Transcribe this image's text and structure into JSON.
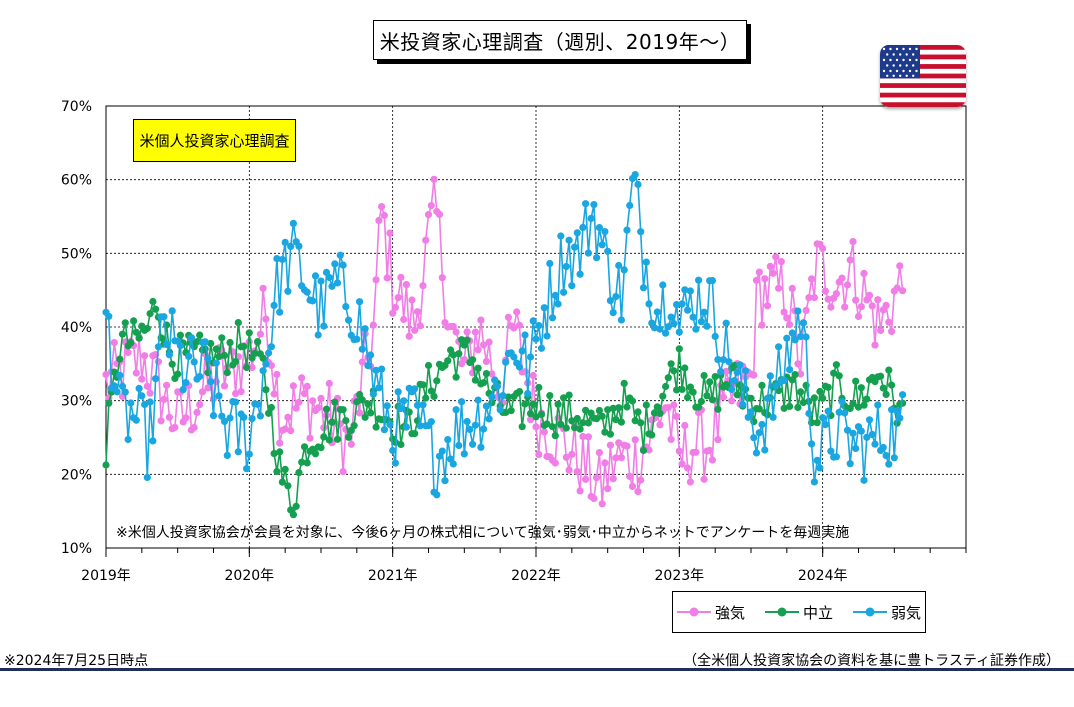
{
  "header": {
    "title": "米投資家心理調査（週別、2019年～）"
  },
  "inset_label": "米個人投資家心理調査",
  "notes": {
    "as_of": "※2024年7月25日時点",
    "source": "（全米個人投資家協会の資料を基に豊トラスティ証券作成）"
  },
  "colors": {
    "bullish": "#f07ee6",
    "neutral": "#15a050",
    "bearish": "#1aa6e0"
  },
  "chart_data": {
    "type": "line",
    "ylim": [
      10,
      70
    ],
    "yticks": [
      "10%",
      "20%",
      "30%",
      "40%",
      "50%",
      "60%",
      "70%"
    ],
    "xlim": [
      2019.0,
      2025.0
    ],
    "xticks": [
      {
        "value": 2019,
        "label": "2019年"
      },
      {
        "value": 2020,
        "label": "2020年"
      },
      {
        "value": 2021,
        "label": "2021年"
      },
      {
        "value": 2022,
        "label": "2022年"
      },
      {
        "value": 2023,
        "label": "2023年"
      },
      {
        "value": 2024,
        "label": "2024年"
      }
    ],
    "grid": "horizontal dashed",
    "annotation": "※米個人投資家協会が会員を対象に、今後6ヶ月の株式相について強気･弱気･中立からネットでアンケートを毎週実施",
    "legend_position": "bottom-right",
    "series": [
      {
        "name": "強気",
        "color": "#f07ee6",
        "anchors": [
          [
            2019.0,
            32
          ],
          [
            2019.25,
            36
          ],
          [
            2019.5,
            27
          ],
          [
            2019.75,
            33
          ],
          [
            2020.0,
            36
          ],
          [
            2020.12,
            42
          ],
          [
            2020.22,
            28
          ],
          [
            2020.4,
            30
          ],
          [
            2020.55,
            28
          ],
          [
            2020.7,
            24
          ],
          [
            2020.87,
            40
          ],
          [
            2020.92,
            56
          ],
          [
            2021.0,
            46
          ],
          [
            2021.15,
            40
          ],
          [
            2021.25,
            52
          ],
          [
            2021.3,
            56
          ],
          [
            2021.4,
            40
          ],
          [
            2021.5,
            34
          ],
          [
            2021.6,
            40
          ],
          [
            2021.75,
            32
          ],
          [
            2021.85,
            40
          ],
          [
            2022.0,
            28
          ],
          [
            2022.2,
            24
          ],
          [
            2022.3,
            22
          ],
          [
            2022.45,
            18
          ],
          [
            2022.55,
            22
          ],
          [
            2022.7,
            22
          ],
          [
            2022.8,
            25
          ],
          [
            2022.9,
            30
          ],
          [
            2023.0,
            22
          ],
          [
            2023.1,
            24
          ],
          [
            2023.2,
            24
          ],
          [
            2023.35,
            30
          ],
          [
            2023.5,
            33
          ],
          [
            2023.55,
            45
          ],
          [
            2023.65,
            45
          ],
          [
            2023.75,
            45
          ],
          [
            2023.85,
            35
          ],
          [
            2023.95,
            48
          ],
          [
            2024.0,
            48
          ],
          [
            2024.1,
            46
          ],
          [
            2024.2,
            48
          ],
          [
            2024.3,
            44
          ],
          [
            2024.4,
            40
          ],
          [
            2024.5,
            44
          ],
          [
            2024.55,
            46
          ],
          [
            2024.6,
            44
          ]
        ],
        "amplitude": 5
      },
      {
        "name": "中立",
        "color": "#15a050",
        "anchors": [
          [
            2019.0,
            24
          ],
          [
            2019.1,
            38
          ],
          [
            2019.2,
            38
          ],
          [
            2019.3,
            40
          ],
          [
            2019.35,
            44
          ],
          [
            2019.45,
            36
          ],
          [
            2019.6,
            36
          ],
          [
            2019.8,
            36
          ],
          [
            2019.95,
            38
          ],
          [
            2020.1,
            34
          ],
          [
            2020.22,
            20
          ],
          [
            2020.3,
            16
          ],
          [
            2020.4,
            24
          ],
          [
            2020.55,
            27
          ],
          [
            2020.7,
            28
          ],
          [
            2020.85,
            30
          ],
          [
            2020.95,
            28
          ],
          [
            2021.1,
            26
          ],
          [
            2021.25,
            32
          ],
          [
            2021.4,
            36
          ],
          [
            2021.55,
            36
          ],
          [
            2021.7,
            30
          ],
          [
            2021.85,
            28
          ],
          [
            2022.0,
            30
          ],
          [
            2022.15,
            28
          ],
          [
            2022.3,
            28
          ],
          [
            2022.45,
            26
          ],
          [
            2022.6,
            30
          ],
          [
            2022.75,
            26
          ],
          [
            2022.9,
            32
          ],
          [
            2023.0,
            35
          ],
          [
            2023.1,
            32
          ],
          [
            2023.2,
            30
          ],
          [
            2023.35,
            33
          ],
          [
            2023.5,
            30
          ],
          [
            2023.65,
            30
          ],
          [
            2023.8,
            32
          ],
          [
            2023.95,
            28
          ],
          [
            2024.1,
            32
          ],
          [
            2024.25,
            30
          ],
          [
            2024.4,
            34
          ],
          [
            2024.5,
            30
          ],
          [
            2024.6,
            26
          ]
        ],
        "amplitude": 3
      },
      {
        "name": "弱気",
        "color": "#1aa6e0",
        "anchors": [
          [
            2019.0,
            42
          ],
          [
            2019.1,
            28
          ],
          [
            2019.2,
            28
          ],
          [
            2019.3,
            24
          ],
          [
            2019.4,
            40
          ],
          [
            2019.55,
            34
          ],
          [
            2019.7,
            34
          ],
          [
            2019.85,
            26
          ],
          [
            2020.0,
            25
          ],
          [
            2020.12,
            36
          ],
          [
            2020.2,
            46
          ],
          [
            2020.3,
            50
          ],
          [
            2020.4,
            46
          ],
          [
            2020.5,
            42
          ],
          [
            2020.6,
            46
          ],
          [
            2020.75,
            42
          ],
          [
            2020.88,
            32
          ],
          [
            2021.0,
            26
          ],
          [
            2021.15,
            28
          ],
          [
            2021.3,
            22
          ],
          [
            2021.45,
            26
          ],
          [
            2021.6,
            28
          ],
          [
            2021.75,
            32
          ],
          [
            2021.85,
            38
          ],
          [
            2021.95,
            34
          ],
          [
            2022.05,
            42
          ],
          [
            2022.2,
            50
          ],
          [
            2022.3,
            50
          ],
          [
            2022.4,
            56
          ],
          [
            2022.5,
            48
          ],
          [
            2022.6,
            44
          ],
          [
            2022.68,
            60
          ],
          [
            2022.75,
            50
          ],
          [
            2022.85,
            42
          ],
          [
            2022.95,
            46
          ],
          [
            2023.0,
            40
          ],
          [
            2023.1,
            44
          ],
          [
            2023.2,
            44
          ],
          [
            2023.3,
            38
          ],
          [
            2023.45,
            30
          ],
          [
            2023.55,
            26
          ],
          [
            2023.65,
            30
          ],
          [
            2023.75,
            36
          ],
          [
            2023.85,
            42
          ],
          [
            2023.95,
            22
          ],
          [
            2024.1,
            26
          ],
          [
            2024.2,
            24
          ],
          [
            2024.3,
            24
          ],
          [
            2024.45,
            26
          ],
          [
            2024.55,
            26
          ],
          [
            2024.6,
            30
          ]
        ],
        "amplitude": 5
      }
    ]
  }
}
